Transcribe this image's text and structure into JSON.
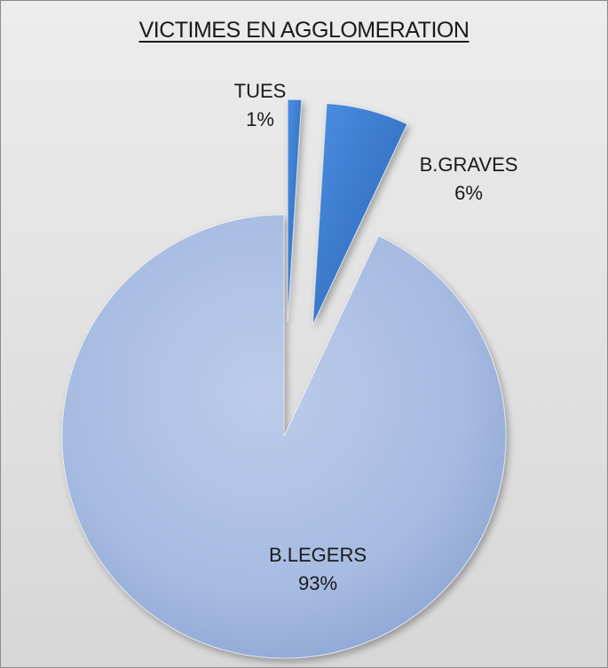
{
  "chart_data": {
    "type": "pie",
    "title": "VICTIMES EN AGGLOMERATION",
    "slices": [
      {
        "label": "TUES",
        "percent_label": "1%",
        "value": 1,
        "color": "#2e6fc0"
      },
      {
        "label": "B.GRAVES",
        "percent_label": "6%",
        "value": 6,
        "color": "#3f7fd0"
      },
      {
        "label": "B.LEGERS",
        "percent_label": "93%",
        "value": 93,
        "color": "#a9bde2"
      }
    ],
    "exploded": true,
    "legend": "none"
  }
}
